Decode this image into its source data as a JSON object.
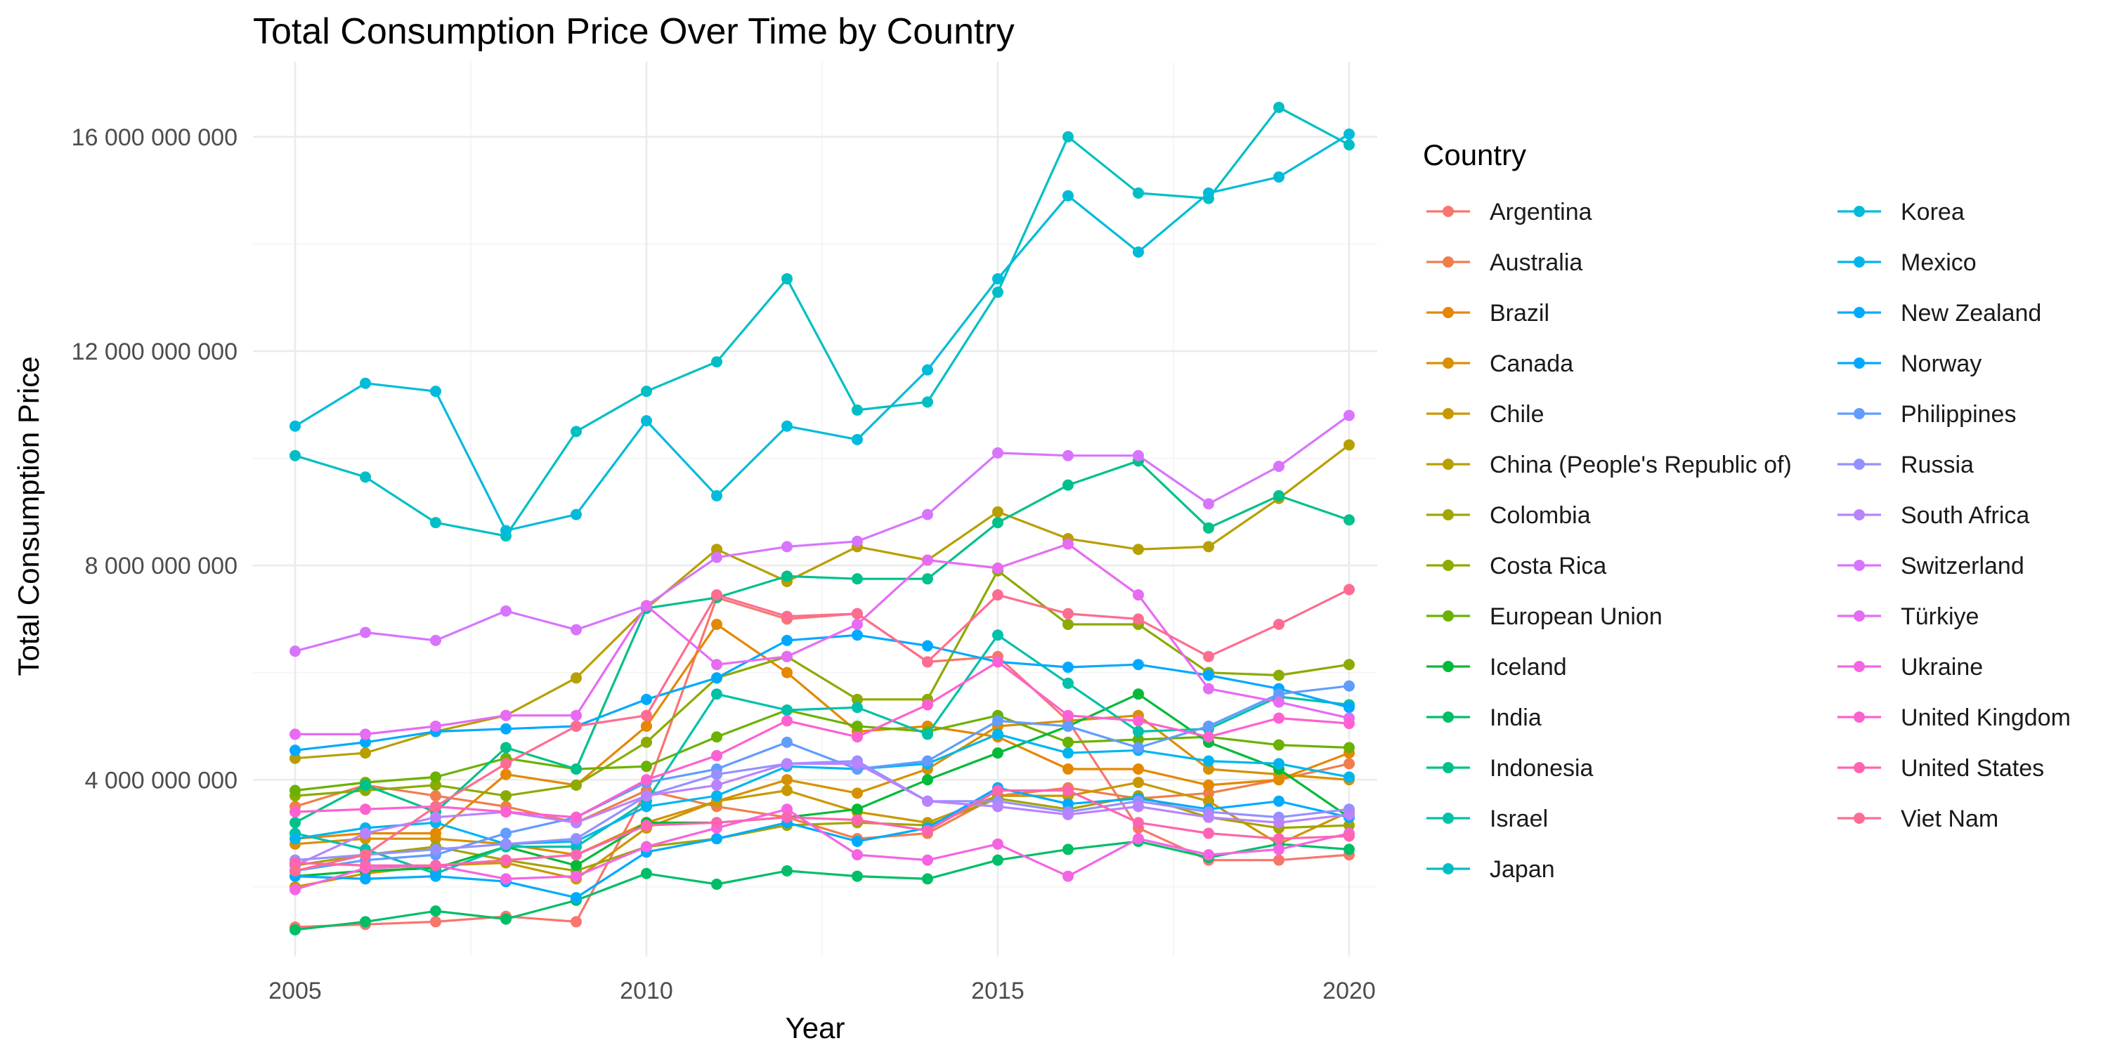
{
  "chart_data": {
    "type": "line",
    "title": "Total Consumption Price Over Time by Country",
    "xlabel": "Year",
    "ylabel": "Total Consumption Price",
    "xlim": [
      2004.4,
      2020.4
    ],
    "ylim": [
      700000000,
      17400000000
    ],
    "x_ticks": [
      2005,
      2010,
      2015,
      2020
    ],
    "x_tick_labels": [
      "2005",
      "2010",
      "2015",
      "2020"
    ],
    "y_ticks": [
      4000000000,
      8000000000,
      12000000000,
      16000000000
    ],
    "y_tick_labels": [
      "4 000 000 000",
      "8 000 000 000",
      "12 000 000 000",
      "16 000 000 000"
    ],
    "grid": true,
    "legend_title": "Country",
    "legend_position": "right",
    "markers": true,
    "x": [
      2005,
      2006,
      2007,
      2008,
      2009,
      2010,
      2011,
      2012,
      2013,
      2014,
      2015,
      2016,
      2017,
      2018,
      2019,
      2020
    ],
    "series": [
      {
        "name": "Argentina",
        "color": "#F8766D",
        "values": [
          1250000000,
          1300000000,
          1350000000,
          1450000000,
          1350000000,
          3800000000,
          7400000000,
          7000000000,
          7100000000,
          6200000000,
          6300000000,
          5100000000,
          3100000000,
          2500000000,
          2500000000,
          2600000000
        ]
      },
      {
        "name": "Australia",
        "color": "#F07E4D",
        "values": [
          3500000000,
          3900000000,
          3700000000,
          3500000000,
          3200000000,
          3800000000,
          3500000000,
          3300000000,
          2900000000,
          3000000000,
          3700000000,
          3850000000,
          3650000000,
          3750000000,
          4000000000,
          4300000000
        ]
      },
      {
        "name": "Brazil",
        "color": "#E58700",
        "values": [
          2900000000,
          3000000000,
          3000000000,
          4100000000,
          3900000000,
          5000000000,
          6900000000,
          6000000000,
          4900000000,
          5000000000,
          4800000000,
          4200000000,
          4200000000,
          3900000000,
          4000000000,
          4500000000
        ]
      },
      {
        "name": "Canada",
        "color": "#D89000",
        "values": [
          2800000000,
          2900000000,
          2900000000,
          2800000000,
          2600000000,
          3200000000,
          3600000000,
          4000000000,
          3750000000,
          4200000000,
          5000000000,
          5100000000,
          5200000000,
          4200000000,
          4100000000,
          4000000000
        ]
      },
      {
        "name": "Chile",
        "color": "#C99800",
        "values": [
          2000000000,
          2250000000,
          2400000000,
          2450000000,
          2150000000,
          3100000000,
          3600000000,
          3800000000,
          3400000000,
          3200000000,
          3700000000,
          3700000000,
          3950000000,
          3600000000,
          2800000000,
          3400000000
        ]
      },
      {
        "name": "China (People's Republic of)",
        "color": "#B79F00",
        "values": [
          4400000000,
          4500000000,
          4900000000,
          5200000000,
          5900000000,
          7200000000,
          8300000000,
          7700000000,
          8350000000,
          8100000000,
          9000000000,
          8500000000,
          8300000000,
          8350000000,
          9250000000,
          10250000000
        ]
      },
      {
        "name": "Colombia",
        "color": "#A3A500",
        "values": [
          2400000000,
          2600000000,
          2750000000,
          2500000000,
          2300000000,
          2750000000,
          2900000000,
          3150000000,
          3200000000,
          3150000000,
          3650000000,
          3450000000,
          3700000000,
          3300000000,
          3100000000,
          3150000000
        ]
      },
      {
        "name": "Costa Rica",
        "color": "#8BAB00",
        "values": [
          3700000000,
          3800000000,
          3900000000,
          3700000000,
          3900000000,
          4700000000,
          5900000000,
          6300000000,
          5500000000,
          5500000000,
          7900000000,
          6900000000,
          6900000000,
          6000000000,
          5950000000,
          6150000000
        ]
      },
      {
        "name": "European Union",
        "color": "#6BB100",
        "values": [
          3800000000,
          3950000000,
          4050000000,
          4400000000,
          4200000000,
          4250000000,
          4800000000,
          5300000000,
          5000000000,
          4900000000,
          5200000000,
          4700000000,
          4750000000,
          4800000000,
          4650000000,
          4600000000
        ]
      },
      {
        "name": "Iceland",
        "color": "#00BA38",
        "values": [
          2200000000,
          2300000000,
          2350000000,
          2750000000,
          2400000000,
          3200000000,
          3200000000,
          3300000000,
          3450000000,
          4000000000,
          4500000000,
          5000000000,
          5600000000,
          4700000000,
          4200000000,
          3300000000
        ]
      },
      {
        "name": "India",
        "color": "#00BE67",
        "values": [
          1200000000,
          1350000000,
          1550000000,
          1400000000,
          1750000000,
          2250000000,
          2050000000,
          2300000000,
          2200000000,
          2150000000,
          2500000000,
          2700000000,
          2850000000,
          2550000000,
          2800000000,
          2700000000
        ]
      },
      {
        "name": "Indonesia",
        "color": "#00C08B",
        "values": [
          3200000000,
          3900000000,
          3400000000,
          4600000000,
          4200000000,
          7200000000,
          7400000000,
          7800000000,
          7750000000,
          7750000000,
          8800000000,
          9500000000,
          9950000000,
          8700000000,
          9300000000,
          8850000000
        ]
      },
      {
        "name": "Israel",
        "color": "#00C1A9",
        "values": [
          3000000000,
          2700000000,
          2250000000,
          2750000000,
          2750000000,
          3600000000,
          5600000000,
          5300000000,
          5350000000,
          4850000000,
          6700000000,
          5800000000,
          4900000000,
          4950000000,
          5550000000,
          5400000000
        ]
      },
      {
        "name": "Japan",
        "color": "#00BFC4",
        "values": [
          10050000000,
          9650000000,
          8800000000,
          8550000000,
          10500000000,
          11250000000,
          11800000000,
          13350000000,
          10900000000,
          11050000000,
          13100000000,
          16000000000,
          14950000000,
          14850000000,
          16550000000,
          15850000000
        ]
      },
      {
        "name": "Korea",
        "color": "#00BBDA",
        "values": [
          10600000000,
          11400000000,
          11250000000,
          8650000000,
          8950000000,
          10700000000,
          9300000000,
          10600000000,
          10350000000,
          11650000000,
          13350000000,
          14900000000,
          13850000000,
          14950000000,
          15250000000,
          16050000000
        ]
      },
      {
        "name": "Mexico",
        "color": "#00B5EE",
        "values": [
          2900000000,
          3100000000,
          3200000000,
          2800000000,
          2850000000,
          3500000000,
          3700000000,
          4250000000,
          4200000000,
          4300000000,
          4850000000,
          4500000000,
          4550000000,
          4350000000,
          4300000000,
          4050000000
        ]
      },
      {
        "name": "New Zealand",
        "color": "#00ABFD",
        "values": [
          2200000000,
          2150000000,
          2200000000,
          2100000000,
          1800000000,
          2650000000,
          2900000000,
          3200000000,
          2850000000,
          3100000000,
          3850000000,
          3550000000,
          3650000000,
          3450000000,
          3600000000,
          3300000000
        ]
      },
      {
        "name": "Norway",
        "color": "#00A9FF",
        "values": [
          4550000000,
          4700000000,
          4900000000,
          4950000000,
          5000000000,
          5500000000,
          5900000000,
          6600000000,
          6700000000,
          6500000000,
          6200000000,
          6100000000,
          6150000000,
          5950000000,
          5700000000,
          5350000000
        ]
      },
      {
        "name": "Philippines",
        "color": "#619CFF",
        "values": [
          2300000000,
          2500000000,
          2600000000,
          3000000000,
          3300000000,
          3950000000,
          4200000000,
          4700000000,
          4200000000,
          4350000000,
          5100000000,
          5000000000,
          4600000000,
          5000000000,
          5600000000,
          5750000000
        ]
      },
      {
        "name": "Russia",
        "color": "#9590FF",
        "values": [
          2500000000,
          2600000000,
          2700000000,
          2800000000,
          2900000000,
          3700000000,
          4100000000,
          4300000000,
          4350000000,
          3600000000,
          3600000000,
          3400000000,
          3600000000,
          3400000000,
          3300000000,
          3450000000
        ]
      },
      {
        "name": "South Africa",
        "color": "#B983FF",
        "values": [
          2400000000,
          3000000000,
          3300000000,
          3400000000,
          3200000000,
          3700000000,
          3900000000,
          4300000000,
          4300000000,
          3600000000,
          3500000000,
          3350000000,
          3500000000,
          3300000000,
          3200000000,
          3350000000
        ]
      },
      {
        "name": "Switzerland",
        "color": "#D874FD",
        "values": [
          6400000000,
          6750000000,
          6600000000,
          7150000000,
          6800000000,
          7250000000,
          8150000000,
          8350000000,
          8450000000,
          8950000000,
          10100000000,
          10050000000,
          10050000000,
          9150000000,
          9850000000,
          10800000000
        ]
      },
      {
        "name": "Türkiye",
        "color": "#E76BF3",
        "values": [
          4850000000,
          4850000000,
          5000000000,
          5200000000,
          5200000000,
          7250000000,
          6150000000,
          6300000000,
          6900000000,
          8100000000,
          7950000000,
          8400000000,
          7450000000,
          5700000000,
          5450000000,
          5150000000
        ]
      },
      {
        "name": "Ukraine",
        "color": "#F564E3",
        "values": [
          1950000000,
          2350000000,
          2400000000,
          2150000000,
          2200000000,
          2750000000,
          3100000000,
          3450000000,
          2600000000,
          2500000000,
          2800000000,
          2200000000,
          2900000000,
          2600000000,
          2700000000,
          3000000000
        ]
      },
      {
        "name": "United Kingdom",
        "color": "#FD61D1",
        "values": [
          3400000000,
          3450000000,
          3500000000,
          3400000000,
          3300000000,
          4000000000,
          4450000000,
          5100000000,
          4800000000,
          5400000000,
          6200000000,
          5200000000,
          5100000000,
          4800000000,
          5150000000,
          5050000000
        ]
      },
      {
        "name": "United States",
        "color": "#FF64B0",
        "values": [
          2450000000,
          2400000000,
          2400000000,
          2500000000,
          2600000000,
          3150000000,
          3200000000,
          3300000000,
          3250000000,
          3050000000,
          3800000000,
          3800000000,
          3200000000,
          3000000000,
          2900000000,
          2950000000
        ]
      },
      {
        "name": "Viet Nam",
        "color": "#FF6C91",
        "values": [
          2300000000,
          2600000000,
          3500000000,
          4300000000,
          5000000000,
          5200000000,
          7450000000,
          7050000000,
          7100000000,
          6200000000,
          7450000000,
          7100000000,
          7000000000,
          6300000000,
          6900000000,
          7550000000
        ]
      }
    ]
  }
}
